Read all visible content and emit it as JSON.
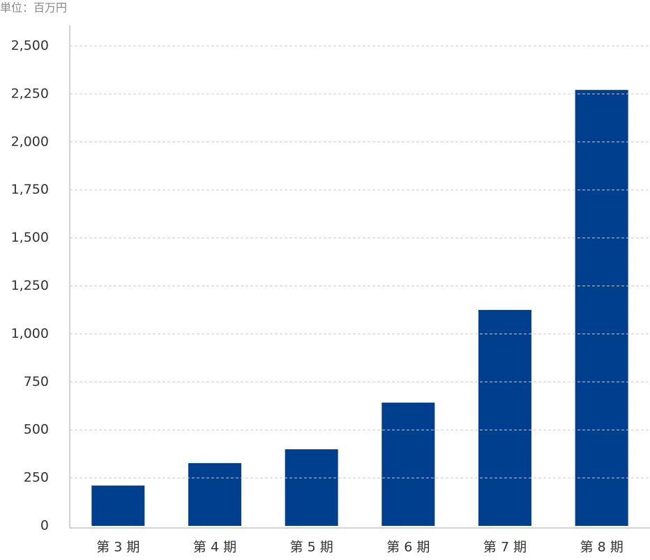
{
  "chart_data": {
    "type": "bar",
    "unit_label": "単位：百万円",
    "categories": [
      "第 3 期",
      "第 4 期",
      "第 5 期",
      "第 6 期",
      "第 7 期",
      "第 8 期"
    ],
    "values": [
      210,
      327,
      399,
      642,
      1125,
      2271
    ],
    "color": "#003f8e",
    "ylim": [
      0,
      2500
    ],
    "yticks": [
      0,
      250,
      500,
      750,
      {
        "value": 1000,
        "label": "1,000"
      },
      {
        "value": 1250,
        "label": "1,250"
      },
      {
        "value": 1500,
        "label": "1,500"
      },
      {
        "value": 1750,
        "label": "1,750"
      },
      {
        "value": 2000,
        "label": "2,000"
      },
      {
        "value": 2250,
        "label": "2,250"
      },
      {
        "value": 2500,
        "label": "2,500"
      }
    ],
    "grid": true
  }
}
